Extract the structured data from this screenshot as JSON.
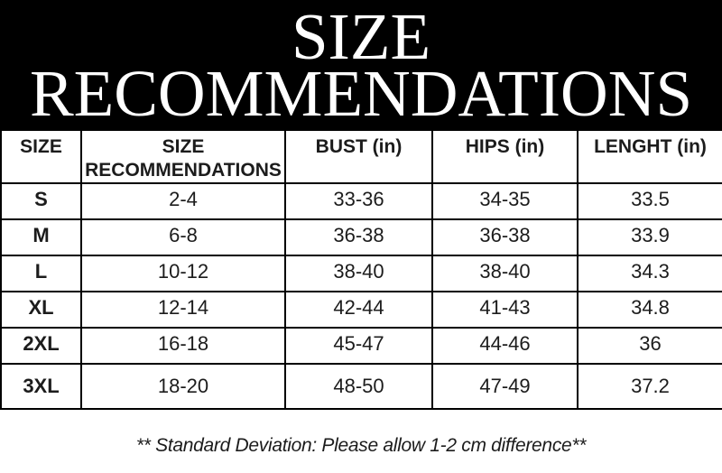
{
  "colors": {
    "banner_background": "#000000",
    "banner_text": "#ffffff",
    "table_border": "#000000",
    "body_text": "#1c1c1c",
    "page_background": "#ffffff"
  },
  "banner": {
    "title_line1": "SIZE",
    "title_line2": "RECOMMENDATIONS"
  },
  "table": {
    "columns": [
      {
        "key": "size",
        "label": "SIZE"
      },
      {
        "key": "recommendation",
        "label": "SIZE RECOMMENDATIONS"
      },
      {
        "key": "bust",
        "label": "BUST (in)"
      },
      {
        "key": "hips",
        "label": "HIPS (in)"
      },
      {
        "key": "length",
        "label": "LENGHT (in)"
      }
    ],
    "rows": [
      {
        "size": "S",
        "recommendation": "2-4",
        "bust": "33-36",
        "hips": "34-35",
        "length": "33.5"
      },
      {
        "size": "M",
        "recommendation": "6-8",
        "bust": "36-38",
        "hips": "36-38",
        "length": "33.9"
      },
      {
        "size": "L",
        "recommendation": "10-12",
        "bust": "38-40",
        "hips": "38-40",
        "length": "34.3"
      },
      {
        "size": "XL",
        "recommendation": "12-14",
        "bust": "42-44",
        "hips": "41-43",
        "length": "34.8"
      },
      {
        "size": "2XL",
        "recommendation": "16-18",
        "bust": "45-47",
        "hips": "44-46",
        "length": "36"
      },
      {
        "size": "3XL",
        "recommendation": "18-20",
        "bust": "48-50",
        "hips": "47-49",
        "length": "37.2"
      }
    ]
  },
  "footer": {
    "note": "** Standard Deviation: Please allow 1-2 cm difference**"
  }
}
